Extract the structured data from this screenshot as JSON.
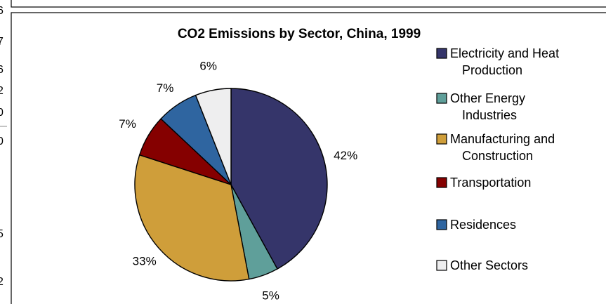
{
  "chart_data": {
    "type": "pie",
    "title": "CO2 Emissions by Sector, China, 1999",
    "series": [
      {
        "name": "Electricity and Heat Production",
        "value": 42,
        "label": "42%",
        "color": "#35356a"
      },
      {
        "name": "Other Energy Industries",
        "value": 5,
        "label": "5%",
        "color": "#5f9f9a"
      },
      {
        "name": "Manufacturing and Construction",
        "value": 33,
        "label": "33%",
        "color": "#cf9e3a"
      },
      {
        "name": "Transportation",
        "value": 7,
        "label": "7%",
        "color": "#850000"
      },
      {
        "name": "Residences",
        "value": 7,
        "label": "7%",
        "color": "#2f65a0"
      },
      {
        "name": "Other Sectors",
        "value": 6,
        "label": "6%",
        "color": "#eeeeef"
      }
    ],
    "legend_position": "right"
  },
  "edge_fragments": [
    "6",
    "7",
    "6",
    "2",
    "0",
    "0",
    "5",
    "2"
  ]
}
